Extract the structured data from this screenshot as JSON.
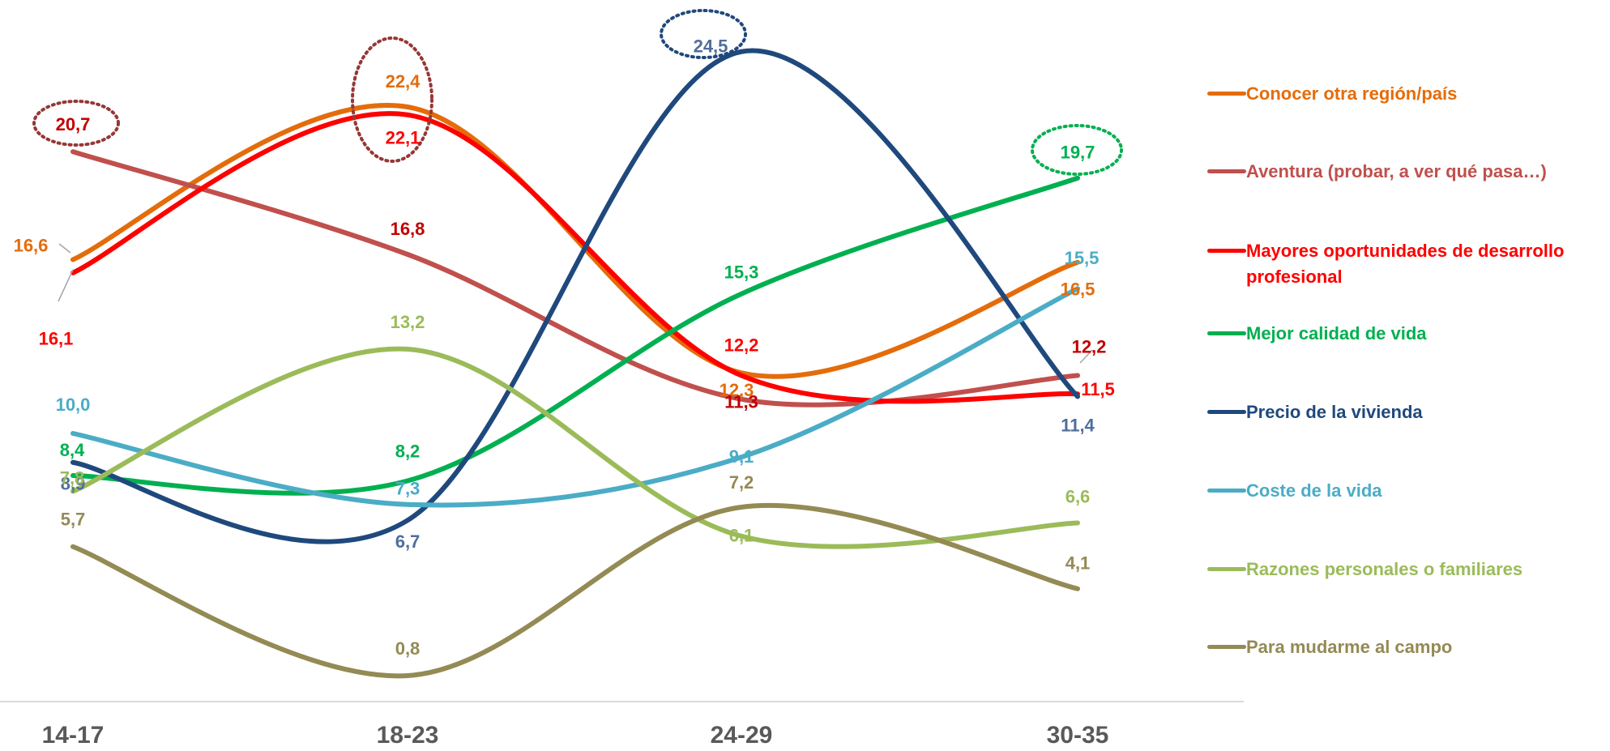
{
  "chart_data": {
    "type": "line",
    "title": "",
    "xlabel": "",
    "ylabel": "",
    "categories": [
      "14-17",
      "18-23",
      "24-29",
      "30-35"
    ],
    "ylim": [
      0,
      26
    ],
    "grid": false,
    "legend_position": "right",
    "series": [
      {
        "name": "Conocer otra región/país",
        "color": "#E46C0A",
        "values": [
          16.6,
          22.4,
          12.3,
          16.5
        ],
        "labels": [
          "16,6",
          "22,4",
          "12,3",
          "16,5"
        ]
      },
      {
        "name": "Aventura (probar, a ver qué pasa…)",
        "color": "#C0504D",
        "values": [
          20.7,
          16.8,
          11.3,
          12.2
        ],
        "labels": [
          "20,7",
          "16,8",
          "11,3",
          "12,2"
        ]
      },
      {
        "name": "Mayores oportunidades de desarrollo profesional",
        "color": "#FF0000",
        "values": [
          16.1,
          22.1,
          12.2,
          11.5
        ],
        "labels": [
          "16,1",
          "22,1",
          "12,2",
          "11,5"
        ]
      },
      {
        "name": "Mejor calidad de vida",
        "color": "#00B050",
        "values": [
          8.4,
          8.2,
          15.3,
          19.7
        ],
        "labels": [
          "8,4",
          "8,2",
          "15,3",
          "19,7"
        ]
      },
      {
        "name": "Precio de la vivienda",
        "color": "#1F497D",
        "values": [
          8.9,
          6.7,
          24.5,
          11.4
        ],
        "labels": [
          "8,9",
          "6,7",
          "24,5",
          "11,4"
        ]
      },
      {
        "name": "Coste de la vida",
        "color": "#4BACC6",
        "values": [
          10.0,
          7.3,
          9.1,
          15.5
        ],
        "labels": [
          "10,0",
          "7,3",
          "9,1",
          "15,5"
        ]
      },
      {
        "name": "Razones personales o familiares",
        "color": "#9BBB59",
        "values": [
          7.8,
          13.2,
          6.1,
          6.6
        ],
        "labels": [
          "7,8",
          "13,2",
          "6,1",
          "6,6"
        ]
      },
      {
        "name": "Para mudarme al campo",
        "color": "#948A54",
        "values": [
          5.7,
          0.8,
          7.2,
          4.1
        ],
        "labels": [
          "5,7",
          "0,8",
          "7,2",
          "4,1"
        ]
      }
    ],
    "highlighted_points": [
      {
        "series": "Aventura (probar, a ver qué pasa…)",
        "category": "14-17",
        "value": 20.7,
        "color": "#953735"
      },
      {
        "series": "Conocer otra región/país",
        "category": "18-23",
        "value": 22.4,
        "color": "#953735"
      },
      {
        "series": "Precio de la vivienda",
        "category": "24-29",
        "value": 24.5,
        "color": "#1F497D"
      },
      {
        "series": "Mejor calidad de vida",
        "category": "30-35",
        "value": 19.7,
        "color": "#00B050"
      }
    ]
  }
}
